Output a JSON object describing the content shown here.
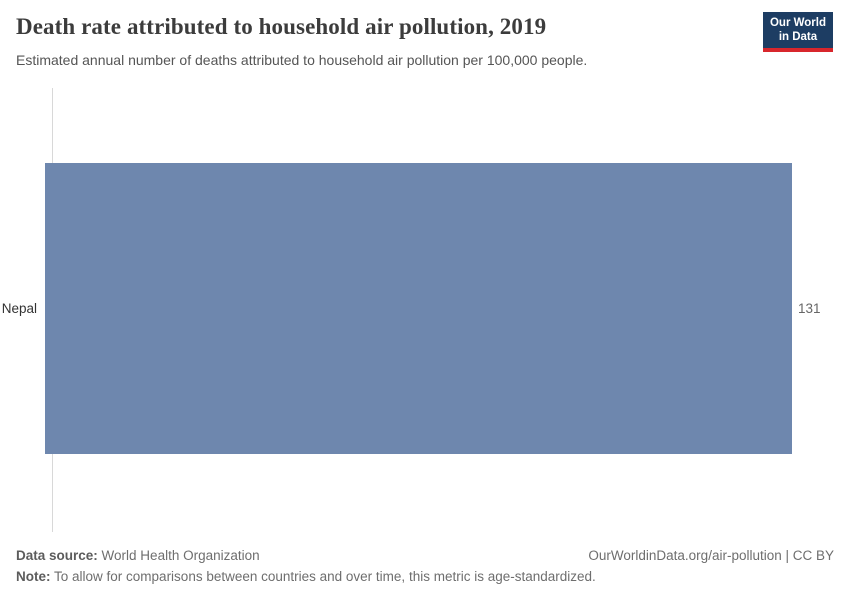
{
  "header": {
    "title": "Death rate attributed to household air pollution, 2019",
    "subtitle": "Estimated annual number of deaths attributed to household air pollution per 100,000 people.",
    "logo": {
      "line1": "Our World",
      "line2": "in Data",
      "bg_color": "#1d3d63",
      "accent_color": "#d8262c"
    }
  },
  "chart_data": {
    "type": "bar",
    "orientation": "horizontal",
    "title": "Death rate attributed to household air pollution, 2019",
    "xlabel": "",
    "ylabel": "",
    "categories": [
      "Nepal"
    ],
    "values": [
      131
    ],
    "value_labels": [
      "131"
    ],
    "xlim": [
      0,
      131
    ],
    "grid": false,
    "legend": "none",
    "bar_color": "#6e87ae",
    "axis_line_color": "#d8d8d8"
  },
  "footer": {
    "data_source_label": "Data source:",
    "data_source_value": "World Health Organization",
    "note_label": "Note:",
    "note_value": "To allow for comparisons between countries and over time, this metric is age-standardized.",
    "attribution": "OurWorldinData.org/air-pollution | CC BY"
  }
}
